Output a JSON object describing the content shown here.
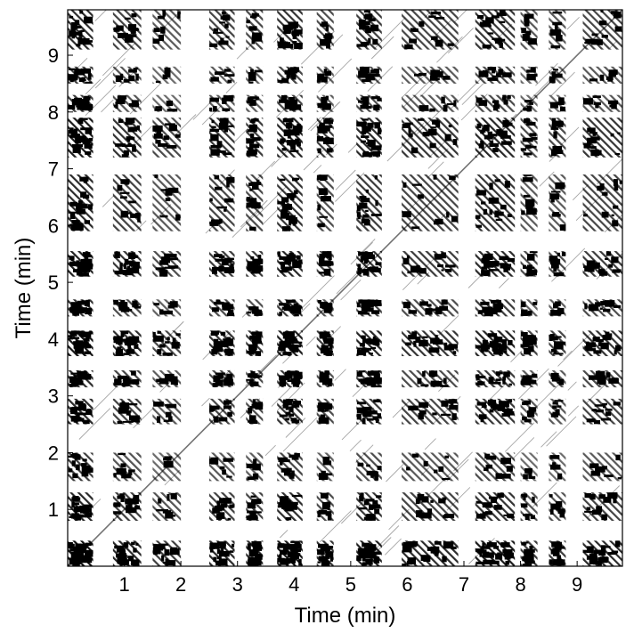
{
  "chart_data": {
    "type": "heatmap",
    "title": "",
    "xlabel": "Time (min)",
    "ylabel": "Time (min)",
    "xlim": [
      0,
      9.8
    ],
    "ylim": [
      0,
      9.8
    ],
    "xticks": [
      1,
      2,
      3,
      4,
      5,
      6,
      7,
      8,
      9
    ],
    "yticks": [
      1,
      2,
      3,
      4,
      5,
      6,
      7,
      8,
      9
    ],
    "xtick_labels": [
      "1",
      "2",
      "3",
      "4",
      "5",
      "6",
      "7",
      "8",
      "9"
    ],
    "ytick_labels": [
      "1",
      "2",
      "3",
      "4",
      "5",
      "6",
      "7",
      "8",
      "9"
    ],
    "grid": false,
    "colors": {
      "recurrence": "#000000",
      "background": "#ffffff"
    },
    "bands": [
      {
        "start": 0.0,
        "end": 0.45,
        "density": 0.9
      },
      {
        "start": 0.8,
        "end": 1.3,
        "density": 0.6
      },
      {
        "start": 1.5,
        "end": 2.0,
        "density": 0.3
      },
      {
        "start": 2.5,
        "end": 2.95,
        "density": 0.55
      },
      {
        "start": 3.15,
        "end": 3.45,
        "density": 0.5
      },
      {
        "start": 3.7,
        "end": 4.15,
        "density": 0.8
      },
      {
        "start": 4.4,
        "end": 4.7,
        "density": 0.45
      },
      {
        "start": 5.1,
        "end": 5.55,
        "density": 0.7
      },
      {
        "start": 5.9,
        "end": 6.9,
        "density": 0.55
      },
      {
        "start": 7.2,
        "end": 7.9,
        "density": 0.75
      },
      {
        "start": 8.0,
        "end": 8.3,
        "density": 0.3
      },
      {
        "start": 8.5,
        "end": 8.8,
        "density": 0.3
      },
      {
        "start": 9.1,
        "end": 9.8,
        "density": 0.55
      }
    ]
  }
}
